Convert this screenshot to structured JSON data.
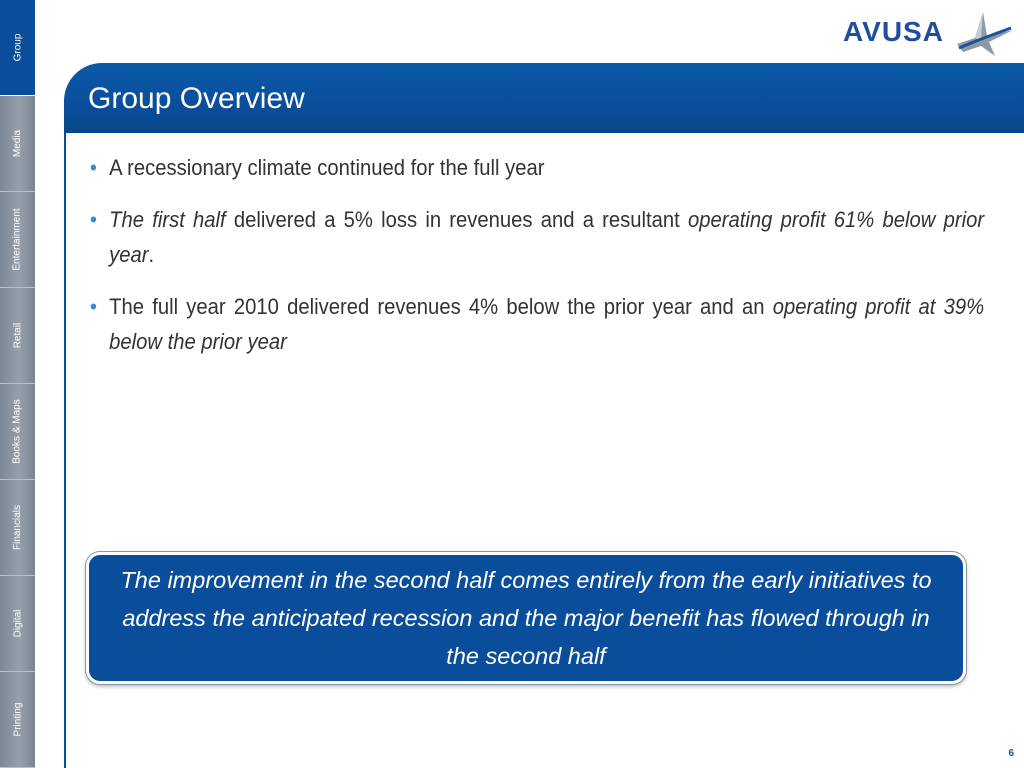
{
  "sidebar": {
    "items": [
      {
        "label": "Group",
        "active": true
      },
      {
        "label": "Media",
        "active": false
      },
      {
        "label": "Entertainment",
        "active": false
      },
      {
        "label": "Retail",
        "active": false
      },
      {
        "label": "Books & Maps",
        "active": false
      },
      {
        "label": "Financials",
        "active": false
      },
      {
        "label": "Digital",
        "active": false
      },
      {
        "label": "Printing",
        "active": false
      }
    ]
  },
  "logo": {
    "text": "AVUSA",
    "icon": "star-swoosh-icon"
  },
  "header": {
    "title": "Group Overview"
  },
  "bullets": [
    {
      "parts": [
        {
          "text": "A recessionary climate continued for the full year",
          "italic": false
        }
      ]
    },
    {
      "parts": [
        {
          "text": "The first half",
          "italic": true
        },
        {
          "text": " delivered a 5% loss in revenues and a resultant ",
          "italic": false
        },
        {
          "text": "operating profit 61% below prior year",
          "italic": true
        },
        {
          "text": ".",
          "italic": false
        }
      ]
    },
    {
      "parts": [
        {
          "text": "The full year 2010 delivered revenues 4% below the prior year and an ",
          "italic": false
        },
        {
          "text": "operating profit at 39% below the prior year",
          "italic": true
        }
      ]
    }
  ],
  "callout": {
    "text": "The improvement in the second half comes entirely from the early initiatives to address the anticipated recession and the major benefit has flowed through in the second half"
  },
  "footer": {
    "page_number": "6"
  },
  "colors": {
    "brand_blue": "#0a4e9b",
    "bullet_blue": "#2f8fd8",
    "sidebar_gray": "#8a96a3"
  }
}
